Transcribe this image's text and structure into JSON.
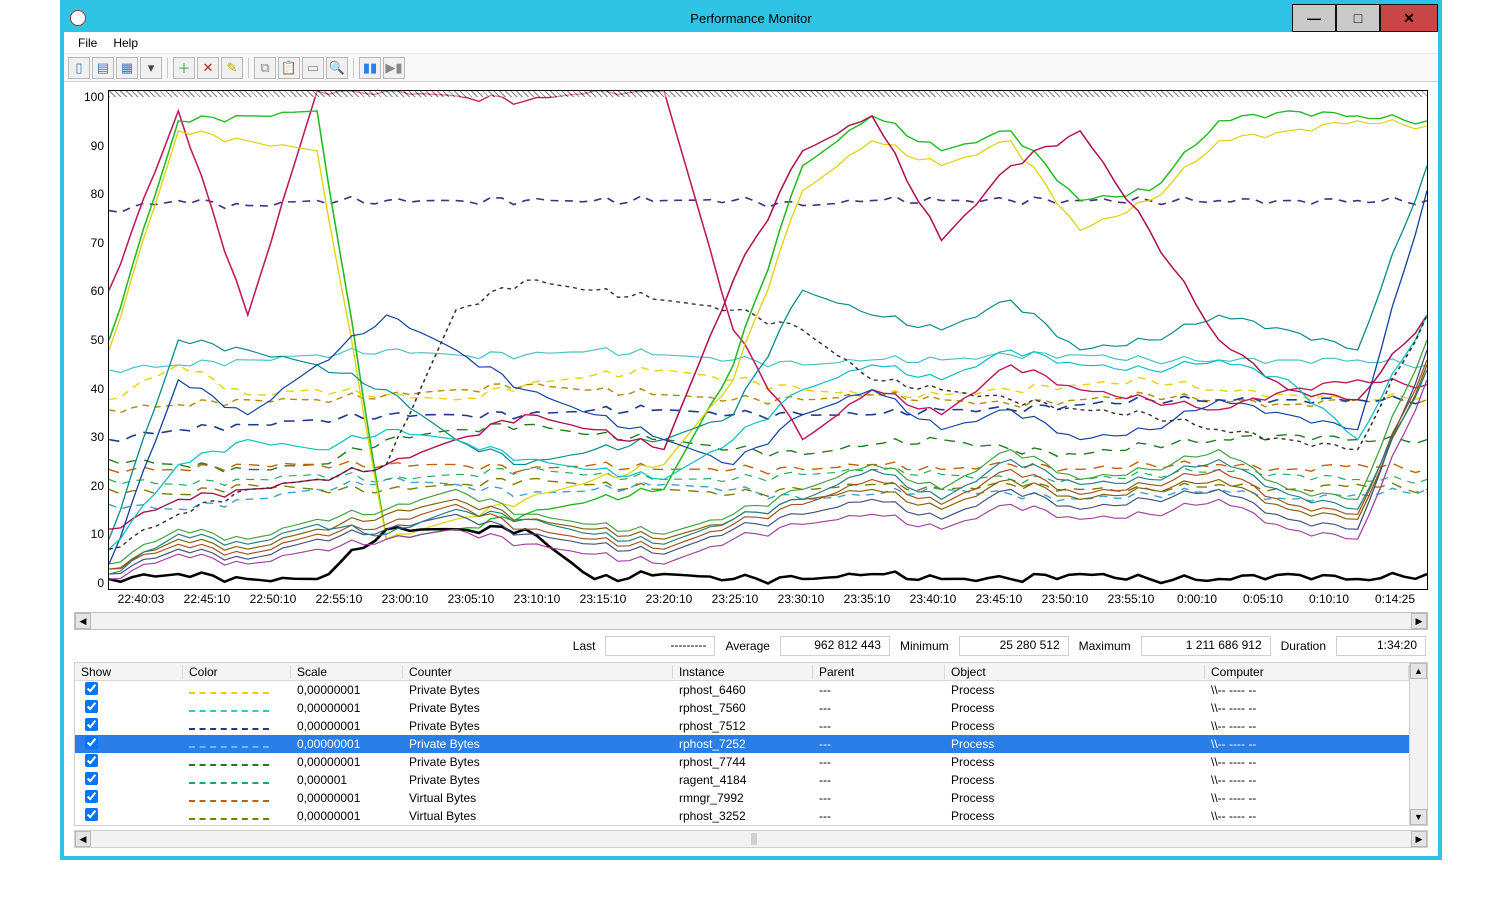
{
  "window": {
    "title": "Performance Monitor"
  },
  "menu": {
    "items": [
      "File",
      "Help"
    ]
  },
  "toolbar": {
    "buttons": [
      {
        "name": "view-tree-icon",
        "glyph": "▯",
        "color": "#3a78c0"
      },
      {
        "name": "view-chart-icon",
        "glyph": "▤",
        "color": "#3a78c0"
      },
      {
        "name": "view-report-icon",
        "glyph": "▦",
        "color": "#3a78c0"
      },
      {
        "name": "dropdown-icon",
        "glyph": "▾",
        "color": "#444"
      },
      {
        "sep": true
      },
      {
        "name": "add-counter-icon",
        "glyph": "＋",
        "color": "#22a022"
      },
      {
        "name": "delete-counter-icon",
        "glyph": "✕",
        "color": "#c02020"
      },
      {
        "name": "highlight-icon",
        "glyph": "✎",
        "color": "#caa000"
      },
      {
        "sep": true
      },
      {
        "name": "copy-icon",
        "glyph": "⧉",
        "color": "#888"
      },
      {
        "name": "paste-icon",
        "glyph": "📋",
        "color": "#888"
      },
      {
        "name": "properties-icon",
        "glyph": "▭",
        "color": "#888"
      },
      {
        "name": "zoom-icon",
        "glyph": "🔍",
        "color": "#888"
      },
      {
        "sep": true
      },
      {
        "name": "freeze-icon",
        "glyph": "▮▮",
        "color": "#2a7ee8"
      },
      {
        "name": "update-icon",
        "glyph": "▶▮",
        "color": "#888"
      }
    ]
  },
  "chart": {
    "ylim": [
      0,
      100
    ],
    "ytick_step": 10,
    "yticks": [
      "100",
      "90",
      "80",
      "70",
      "60",
      "50",
      "40",
      "30",
      "20",
      "10",
      "0"
    ],
    "xticks": [
      "22:40:03",
      "22:45:10",
      "22:50:10",
      "22:55:10",
      "23:00:10",
      "23:05:10",
      "23:10:10",
      "23:15:10",
      "23:20:10",
      "23:25:10",
      "23:30:10",
      "23:35:10",
      "23:40:10",
      "23:45:10",
      "23:50:10",
      "23:55:10",
      "0:00:10",
      "0:05:10",
      "0:10:10",
      "0:14:25"
    ],
    "background_color": "#ffffff",
    "grid_color": "#e8e8e8",
    "series": [
      {
        "color": "#e6d200",
        "dash": "6,5",
        "width": 1.2,
        "data": [
          38,
          45,
          39,
          40,
          39,
          38,
          41,
          43,
          44,
          42,
          40,
          39,
          39,
          40,
          41,
          42,
          40,
          39,
          38,
          39
        ]
      },
      {
        "color": "#b08800",
        "dash": "5,4",
        "width": 1.2,
        "data": [
          36,
          37,
          38,
          38,
          39,
          40,
          41,
          40,
          39,
          38,
          38,
          39,
          38,
          37,
          38,
          39,
          38,
          37,
          38,
          38
        ]
      },
      {
        "color": "#44c1c1",
        "dash": "",
        "width": 1.0,
        "data": [
          44,
          45,
          46,
          47,
          48,
          47,
          47,
          48,
          47,
          46,
          45,
          46,
          46,
          47,
          47,
          46,
          46,
          46,
          46,
          45
        ]
      },
      {
        "color": "#3aa0d0",
        "dash": "6,5",
        "width": 1.2,
        "data": [
          17,
          16,
          18,
          20,
          22,
          21,
          19,
          20,
          21,
          20,
          18,
          19,
          20,
          19,
          18,
          19,
          20,
          18,
          19,
          20
        ]
      },
      {
        "color": "#1e3a8a",
        "dash": "8,6",
        "width": 1.4,
        "data": [
          30,
          32,
          33,
          34,
          35,
          35,
          35,
          36,
          36,
          35,
          35,
          35,
          36,
          36,
          37,
          38,
          38,
          38,
          38,
          38
        ]
      },
      {
        "color": "#1e7a1e",
        "dash": "8,6",
        "width": 1.2,
        "data": [
          26,
          25,
          24,
          25,
          30,
          32,
          33,
          31,
          30,
          28,
          27,
          29,
          30,
          28,
          27,
          29,
          30,
          31,
          30,
          30
        ]
      },
      {
        "color": "#1ea85a",
        "dash": "6,5",
        "width": 1.0,
        "data": [
          22,
          21,
          22,
          23,
          22,
          23,
          24,
          23,
          22,
          22,
          23,
          24,
          23,
          22,
          22,
          23,
          24,
          23,
          22,
          22
        ]
      },
      {
        "color": "#c06000",
        "dash": "8,6",
        "width": 1.2,
        "data": [
          24,
          24,
          25,
          25,
          25,
          25,
          24,
          25,
          24,
          24,
          24,
          25,
          24,
          25,
          24,
          25,
          25,
          24,
          25,
          24
        ]
      },
      {
        "color": "#7a7a00",
        "dash": "8,6",
        "width": 1.2,
        "data": [
          20,
          19,
          21,
          20,
          20,
          21,
          22,
          21,
          20,
          19,
          20,
          21,
          20,
          21,
          20,
          20,
          21,
          20,
          21,
          20
        ]
      },
      {
        "color": "#4b2b80",
        "dash": "6,5",
        "width": 1.4,
        "data": [
          76,
          78,
          77,
          78,
          78,
          78,
          78,
          78,
          78,
          78,
          77,
          78,
          78,
          78,
          78,
          78,
          78,
          78,
          78,
          78
        ]
      },
      {
        "color": "#c2185b",
        "dash": "",
        "width": 1.2,
        "data": [
          60,
          96,
          55,
          100,
          100,
          99,
          98,
          100,
          100,
          52,
          30,
          40,
          35,
          45,
          40,
          38,
          36,
          40,
          42,
          41
        ]
      },
      {
        "color": "#22bb22",
        "dash": "",
        "width": 1.2,
        "data": [
          50,
          94,
          95,
          96,
          10,
          12,
          15,
          18,
          20,
          45,
          85,
          95,
          88,
          92,
          78,
          80,
          94,
          96,
          95,
          94
        ]
      },
      {
        "color": "#e0d000",
        "dash": "",
        "width": 1.0,
        "data": [
          48,
          92,
          90,
          88,
          10,
          14,
          18,
          22,
          25,
          42,
          80,
          90,
          85,
          90,
          72,
          78,
          90,
          92,
          94,
          93
        ]
      },
      {
        "color": "#008b8b",
        "dash": "",
        "width": 1.0,
        "data": [
          10,
          50,
          48,
          45,
          40,
          30,
          25,
          28,
          30,
          35,
          60,
          55,
          52,
          58,
          48,
          50,
          55,
          52,
          48,
          85
        ]
      },
      {
        "color": "#b01050",
        "dash": "",
        "width": 1.2,
        "data": [
          12,
          18,
          20,
          22,
          25,
          30,
          35,
          32,
          28,
          62,
          88,
          95,
          70,
          85,
          92,
          72,
          50,
          40,
          38,
          55
        ]
      },
      {
        "color": "#1040a0",
        "dash": "",
        "width": 1.0,
        "data": [
          5,
          42,
          35,
          45,
          55,
          48,
          40,
          35,
          30,
          25,
          35,
          40,
          32,
          36,
          30,
          32,
          38,
          35,
          32,
          80
        ]
      },
      {
        "color": "#00c0c0",
        "dash": "",
        "width": 1.0,
        "data": [
          8,
          25,
          30,
          28,
          32,
          30,
          26,
          24,
          22,
          30,
          40,
          45,
          42,
          48,
          45,
          44,
          46,
          42,
          30,
          55
        ]
      },
      {
        "color": "#303030",
        "dash": "3,3",
        "width": 1.2,
        "data": [
          8,
          15,
          20,
          22,
          25,
          56,
          62,
          60,
          58,
          56,
          52,
          42,
          40,
          38,
          36,
          35,
          32,
          30,
          28,
          55
        ]
      },
      {
        "color": "#000000",
        "dash": "",
        "width": 2.2,
        "data": [
          2,
          3,
          2,
          2,
          12,
          12,
          12,
          2,
          3,
          2,
          2,
          3,
          2,
          2,
          3,
          2,
          2,
          3,
          2,
          3
        ]
      },
      {
        "color": "#806000",
        "dash": "",
        "width": 1.0,
        "data": [
          4,
          10,
          8,
          12,
          15,
          18,
          14,
          12,
          10,
          14,
          18,
          20,
          16,
          22,
          18,
          20,
          22,
          16,
          14,
          45
        ]
      },
      {
        "color": "#405080",
        "dash": "",
        "width": 1.0,
        "data": [
          3,
          8,
          6,
          10,
          12,
          15,
          11,
          9,
          7,
          12,
          15,
          18,
          14,
          20,
          16,
          18,
          20,
          14,
          12,
          48
        ]
      },
      {
        "color": "#a040a0",
        "dash": "",
        "width": 1.0,
        "data": [
          2,
          7,
          5,
          8,
          10,
          12,
          9,
          7,
          5,
          10,
          13,
          15,
          12,
          17,
          14,
          15,
          18,
          12,
          10,
          42
        ]
      },
      {
        "color": "#40a040",
        "dash": "",
        "width": 1.0,
        "data": [
          5,
          12,
          10,
          14,
          16,
          20,
          15,
          13,
          11,
          15,
          20,
          25,
          20,
          28,
          22,
          24,
          28,
          20,
          18,
          50
        ]
      },
      {
        "color": "#a05020",
        "dash": "",
        "width": 1.0,
        "data": [
          4,
          9,
          7,
          11,
          13,
          17,
          12,
          10,
          8,
          13,
          17,
          22,
          17,
          24,
          19,
          21,
          24,
          17,
          15,
          46
        ]
      },
      {
        "color": "#208080",
        "dash": "",
        "width": 1.0,
        "data": [
          3,
          11,
          9,
          13,
          11,
          16,
          14,
          11,
          9,
          14,
          18,
          24,
          18,
          26,
          21,
          22,
          26,
          19,
          16,
          44
        ]
      }
    ]
  },
  "stats": {
    "last_label": "Last",
    "last": "---------",
    "average_label": "Average",
    "average": "962 812 443",
    "minimum_label": "Minimum",
    "minimum": "25 280 512",
    "maximum_label": "Maximum",
    "maximum": "1 211 686 912",
    "duration_label": "Duration",
    "duration": "1:34:20"
  },
  "grid": {
    "headers": {
      "show": "Show",
      "color": "Color",
      "scale": "Scale",
      "counter": "Counter",
      "instance": "Instance",
      "parent": "Parent",
      "object": "Object",
      "computer": "Computer"
    },
    "selected_index": 3,
    "rows": [
      {
        "checked": true,
        "color": "#e6d200",
        "scale": "0,00000001",
        "counter": "Private Bytes",
        "instance": "rphost_6460",
        "parent": "---",
        "object": "Process",
        "computer": "\\\\--  ---- --"
      },
      {
        "checked": true,
        "color": "#44c1c1",
        "scale": "0,00000001",
        "counter": "Private Bytes",
        "instance": "rphost_7560",
        "parent": "---",
        "object": "Process",
        "computer": "\\\\--  ---- --"
      },
      {
        "checked": true,
        "color": "#1e3a8a",
        "scale": "0,00000001",
        "counter": "Private Bytes",
        "instance": "rphost_7512",
        "parent": "---",
        "object": "Process",
        "computer": "\\\\--  ---- --"
      },
      {
        "checked": true,
        "color": "#6ab8ff",
        "scale": "0,00000001",
        "counter": "Private Bytes",
        "instance": "rphost_7252",
        "parent": "---",
        "object": "Process",
        "computer": "\\\\--  ---- --"
      },
      {
        "checked": true,
        "color": "#1e7a1e",
        "scale": "0,00000001",
        "counter": "Private Bytes",
        "instance": "rphost_7744",
        "parent": "---",
        "object": "Process",
        "computer": "\\\\--  ---- --"
      },
      {
        "checked": true,
        "color": "#1ea85a",
        "scale": "0,000001",
        "counter": "Private Bytes",
        "instance": "ragent_4184",
        "parent": "---",
        "object": "Process",
        "computer": "\\\\--  ---- --"
      },
      {
        "checked": true,
        "color": "#c06000",
        "scale": "0,00000001",
        "counter": "Virtual Bytes",
        "instance": "rmngr_7992",
        "parent": "---",
        "object": "Process",
        "computer": "\\\\--  ---- --"
      },
      {
        "checked": true,
        "color": "#7a7a00",
        "scale": "0,00000001",
        "counter": "Virtual Bytes",
        "instance": "rphost_3252",
        "parent": "---",
        "object": "Process",
        "computer": "\\\\--  ---- --"
      }
    ]
  }
}
